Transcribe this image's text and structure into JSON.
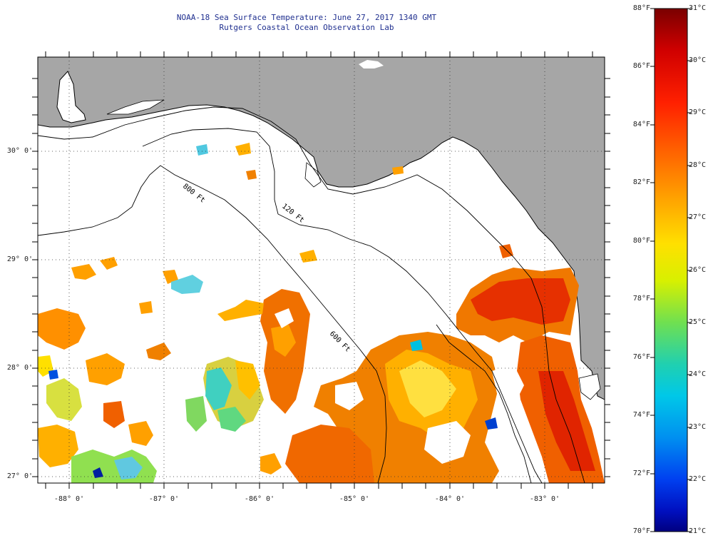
{
  "header": {
    "title_line1": "NOAA-18 Sea Surface Temperature:  June 27, 2017 1340 GMT",
    "title_line2": "Rutgers Coastal Ocean Observation Lab"
  },
  "map": {
    "latitude_labels": [
      "30° 0'",
      "29° 0'",
      "28° 0'",
      "27° 0'"
    ],
    "longitude_labels": [
      "-88° 0'",
      "-87° 0'",
      "-86° 0'",
      "-85° 0'",
      "-84° 0'",
      "-83° 0'"
    ],
    "isobath_labels": [
      "800 Ft",
      "120 Ft",
      "600 Ft"
    ],
    "colors": {
      "land": "#a6a6a6",
      "ocean_clouds": "#ffffff",
      "coastline": "#000000"
    }
  },
  "colorbar": {
    "fahrenheit_labels": [
      "88°F",
      "86°F",
      "84°F",
      "82°F",
      "80°F",
      "78°F",
      "76°F",
      "74°F",
      "72°F",
      "70°F"
    ],
    "celsius_labels": [
      "31°C",
      "30°C",
      "29°C",
      "28°C",
      "27°C",
      "26°C",
      "25°C",
      "24°C",
      "23°C",
      "22°C",
      "21°C"
    ],
    "gradient_colors": [
      "#7a0000",
      "#e00000",
      "#ff3000",
      "#ff7a00",
      "#ffb000",
      "#ffe000",
      "#d8f000",
      "#80e040",
      "#30d090",
      "#00d0e0",
      "#00a0f0",
      "#0060f0",
      "#0020e0",
      "#000080"
    ]
  }
}
